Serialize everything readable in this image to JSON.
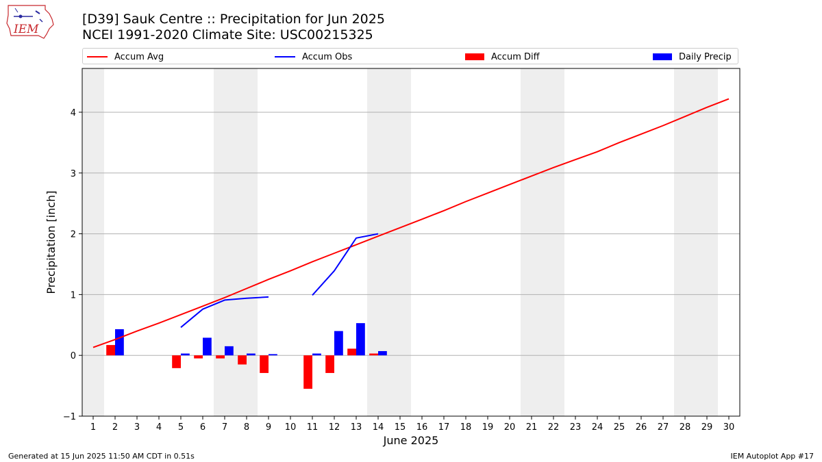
{
  "header": {
    "title": "[D39] Sauk Centre :: Precipitation for Jun 2025",
    "subtitle": "NCEI 1991-2020 Climate Site: USC00215325"
  },
  "logo": {
    "text": "IEM",
    "icon": "iem-logo-icon"
  },
  "legend": {
    "items": [
      {
        "label": "Accum Avg",
        "color": "#ff0000",
        "kind": "line"
      },
      {
        "label": "Accum Obs",
        "color": "#0000ff",
        "kind": "line"
      },
      {
        "label": "Accum Diff",
        "color": "#ff0000",
        "kind": "bar"
      },
      {
        "label": "Daily Precip",
        "color": "#0000ff",
        "kind": "bar"
      }
    ]
  },
  "footer": {
    "generated": "Generated at 15 Jun 2025 11:50 AM CDT in 0.51s",
    "app": "IEM Autoplot App #17"
  },
  "chart_data": {
    "type": "bar",
    "title": "[D39] Sauk Centre :: Precipitation for Jun 2025",
    "xlabel": "June 2025",
    "ylabel": "Precipitation [inch]",
    "xlim": [
      0.5,
      30.5
    ],
    "ylim": [
      -1.0,
      4.72
    ],
    "yticks": [
      -1,
      0,
      1,
      2,
      3,
      4
    ],
    "categories": [
      "1",
      "2",
      "3",
      "4",
      "5",
      "6",
      "7",
      "8",
      "9",
      "10",
      "11",
      "12",
      "13",
      "14",
      "15",
      "16",
      "17",
      "18",
      "19",
      "20",
      "21",
      "22",
      "23",
      "24",
      "25",
      "26",
      "27",
      "28",
      "29",
      "30"
    ],
    "weekend_bands": [
      [
        0.5,
        1.5
      ],
      [
        6.5,
        8.5
      ],
      [
        13.5,
        15.5
      ],
      [
        20.5,
        22.5
      ],
      [
        27.5,
        29.5
      ]
    ],
    "grid": "horizontal",
    "series": [
      {
        "name": "Accum Avg",
        "type": "line",
        "color": "#ff0000",
        "x": [
          1,
          2,
          3,
          4,
          5,
          6,
          7,
          8,
          9,
          10,
          11,
          12,
          13,
          14,
          15,
          16,
          17,
          18,
          19,
          20,
          21,
          22,
          23,
          24,
          25,
          26,
          27,
          28,
          29,
          30
        ],
        "values": [
          0.13,
          0.26,
          0.4,
          0.53,
          0.67,
          0.81,
          0.95,
          1.1,
          1.25,
          1.39,
          1.54,
          1.68,
          1.82,
          1.96,
          2.1,
          2.24,
          2.38,
          2.53,
          2.67,
          2.81,
          2.95,
          3.09,
          3.22,
          3.35,
          3.5,
          3.64,
          3.78,
          3.93,
          4.08,
          4.22
        ]
      },
      {
        "name": "Accum Obs",
        "type": "line",
        "color": "#0000ff",
        "x": [
          5,
          6,
          7,
          8,
          9,
          10,
          11,
          12,
          13,
          14
        ],
        "values": [
          0.46,
          0.76,
          0.91,
          0.94,
          0.96,
          null,
          0.99,
          1.39,
          1.93,
          2.0
        ]
      },
      {
        "name": "Accum Diff",
        "type": "bar",
        "color": "#ff0000",
        "offset": -0.2,
        "x": [
          2,
          5,
          6,
          7,
          8,
          9,
          11,
          12,
          13,
          14
        ],
        "values": [
          0.17,
          -0.21,
          -0.05,
          -0.05,
          -0.15,
          -0.29,
          -0.55,
          -0.29,
          0.11,
          0.03
        ]
      },
      {
        "name": "Daily Precip",
        "type": "bar",
        "color": "#0000ff",
        "offset": 0.2,
        "x": [
          2,
          5,
          6,
          7,
          8,
          9,
          11,
          12,
          13,
          14
        ],
        "values": [
          0.43,
          0.03,
          0.29,
          0.15,
          0.03,
          0.02,
          0.03,
          0.4,
          0.53,
          0.07
        ]
      }
    ]
  }
}
